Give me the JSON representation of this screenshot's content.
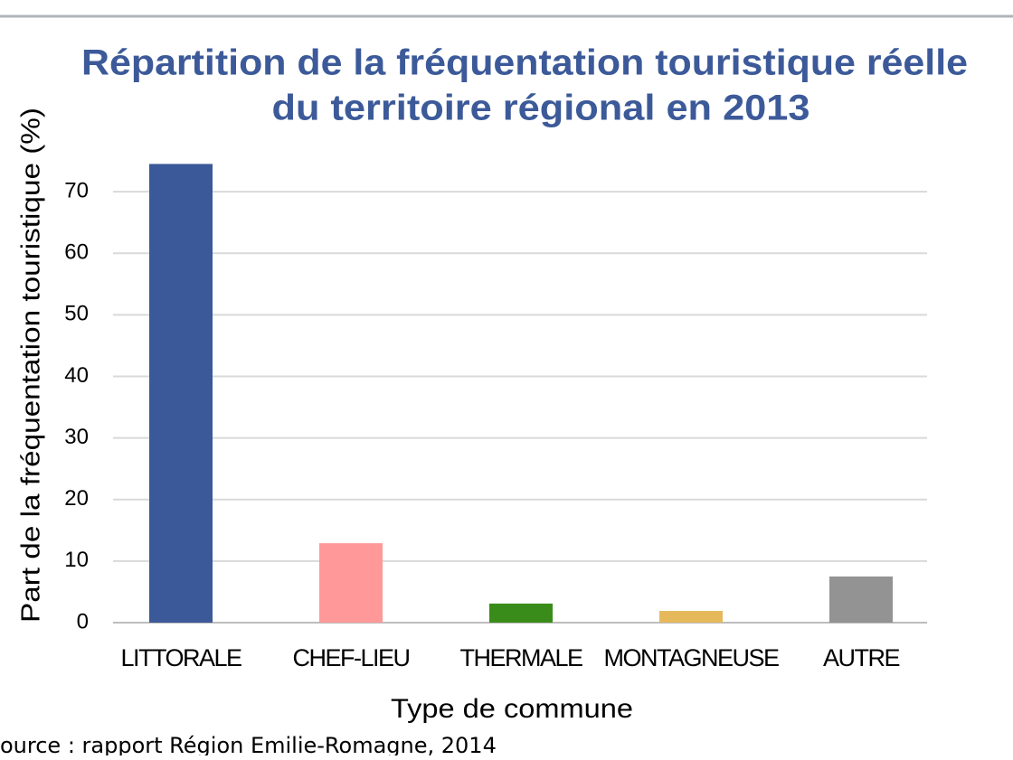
{
  "chart_data": {
    "type": "bar",
    "title": [
      "Répartition de la fréquentation touristique réelle",
      "du territoire régional en 2013"
    ],
    "x_label": "Type de commune",
    "y_label": "Part de la fréquentation touristique (%)",
    "categories": [
      "LITTORALE",
      "CHEF-LIEU",
      "THERMALE",
      "MONTAGNEUSE",
      "AUTRE"
    ],
    "values": [
      74.5,
      12.9,
      3.1,
      1.9,
      7.5
    ],
    "colors": [
      "#3b5998",
      "#ff9999",
      "#3a8c1a",
      "#e6b85c",
      "#939393"
    ],
    "ylim": [
      0,
      75
    ],
    "yticks": [
      0,
      10,
      20,
      30,
      40,
      50,
      60,
      70
    ],
    "grid": true,
    "source": "ource : rapport Région Emilie-Romagne, 2014"
  }
}
